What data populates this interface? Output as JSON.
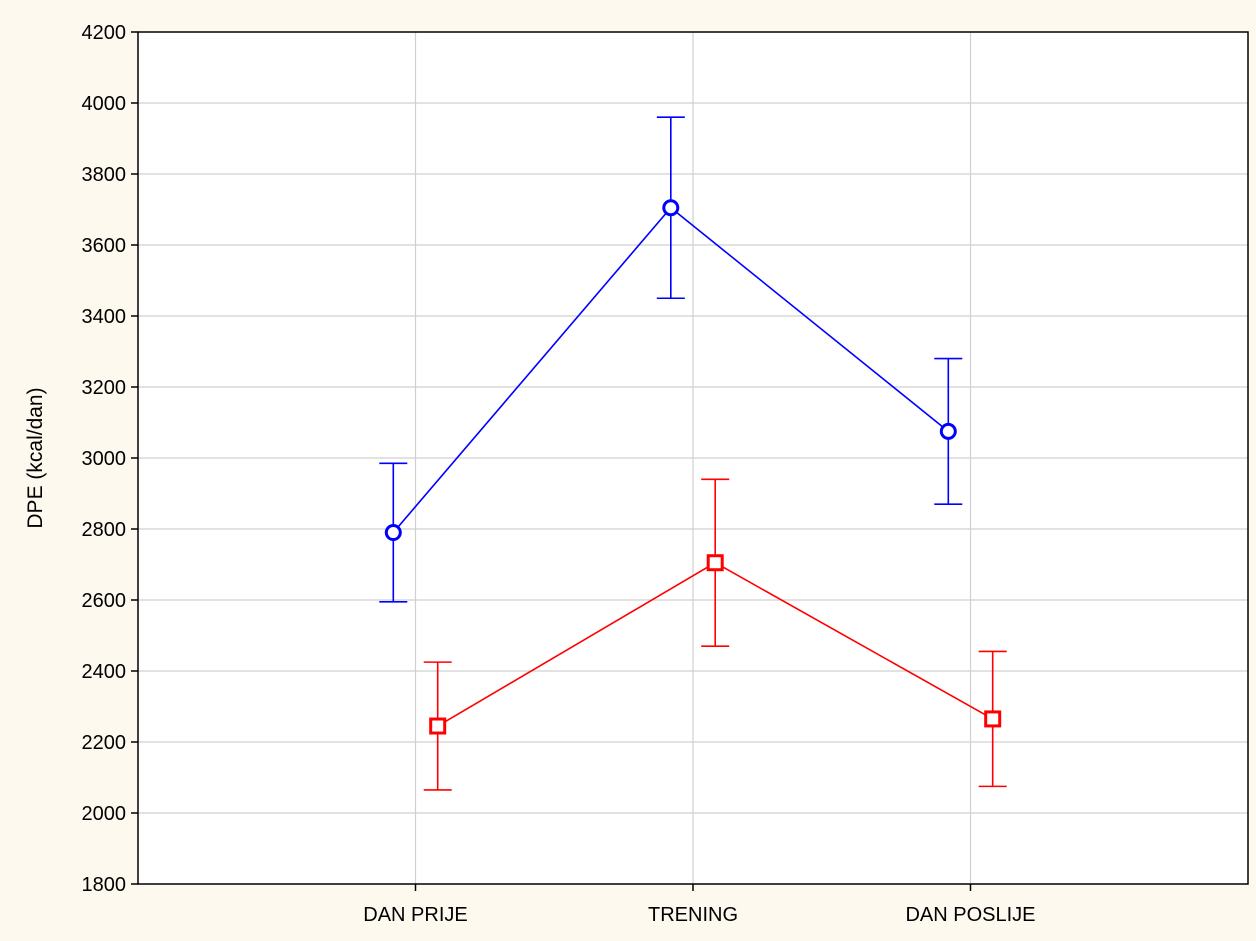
{
  "chart_data": {
    "type": "line",
    "title": "",
    "xlabel": "",
    "ylabel": "DPE (kcal/dan)",
    "categories": [
      "DAN PRIJE",
      "TRENING",
      "DAN POSLIJE"
    ],
    "ylim": [
      1800,
      4200
    ],
    "yticks": [
      1800,
      2000,
      2200,
      2400,
      2600,
      2800,
      3000,
      3200,
      3400,
      3600,
      3800,
      4000,
      4200
    ],
    "grid": true,
    "legend": "none",
    "series": [
      {
        "color": "#0000ff",
        "marker": "circle",
        "values": [
          2790,
          3705,
          3075
        ],
        "error_low": [
          2595,
          3450,
          2870
        ],
        "error_high": [
          2985,
          3960,
          3280
        ]
      },
      {
        "color": "#ff0000",
        "marker": "square",
        "values": [
          2245,
          2705,
          2265
        ],
        "error_low": [
          2065,
          2470,
          2075
        ],
        "error_high": [
          2425,
          2940,
          2455
        ]
      }
    ]
  }
}
